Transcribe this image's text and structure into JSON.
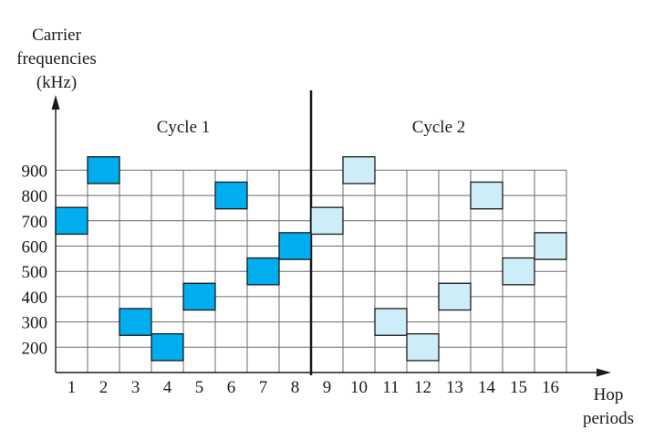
{
  "chart_data": {
    "type": "frequency-hopping diagram",
    "ylabel": [
      "Carrier",
      "frequencies",
      "(kHz)"
    ],
    "xlabel": [
      "Hop",
      "periods"
    ],
    "y_ticks": [
      200,
      300,
      400,
      500,
      600,
      700,
      800,
      900
    ],
    "x_ticks": [
      1,
      2,
      3,
      4,
      5,
      6,
      7,
      8,
      9,
      10,
      11,
      12,
      13,
      14,
      15,
      16
    ],
    "cycles": [
      {
        "label": "Cycle 1",
        "periods": [
          1,
          8
        ],
        "color": "#00aeef"
      },
      {
        "label": "Cycle 2",
        "periods": [
          9,
          16
        ],
        "color": "#cdeef9"
      }
    ],
    "hops": [
      {
        "period": 1,
        "frequency": 700
      },
      {
        "period": 2,
        "frequency": 900
      },
      {
        "period": 3,
        "frequency": 300
      },
      {
        "period": 4,
        "frequency": 200
      },
      {
        "period": 5,
        "frequency": 400
      },
      {
        "period": 6,
        "frequency": 800
      },
      {
        "period": 7,
        "frequency": 500
      },
      {
        "period": 8,
        "frequency": 600
      },
      {
        "period": 9,
        "frequency": 700
      },
      {
        "period": 10,
        "frequency": 900
      },
      {
        "period": 11,
        "frequency": 300
      },
      {
        "period": 12,
        "frequency": 200
      },
      {
        "period": 13,
        "frequency": 400
      },
      {
        "period": 14,
        "frequency": 800
      },
      {
        "period": 15,
        "frequency": 500
      },
      {
        "period": 16,
        "frequency": 600
      }
    ],
    "cycle_divider_after_period": 8,
    "grid": true
  }
}
